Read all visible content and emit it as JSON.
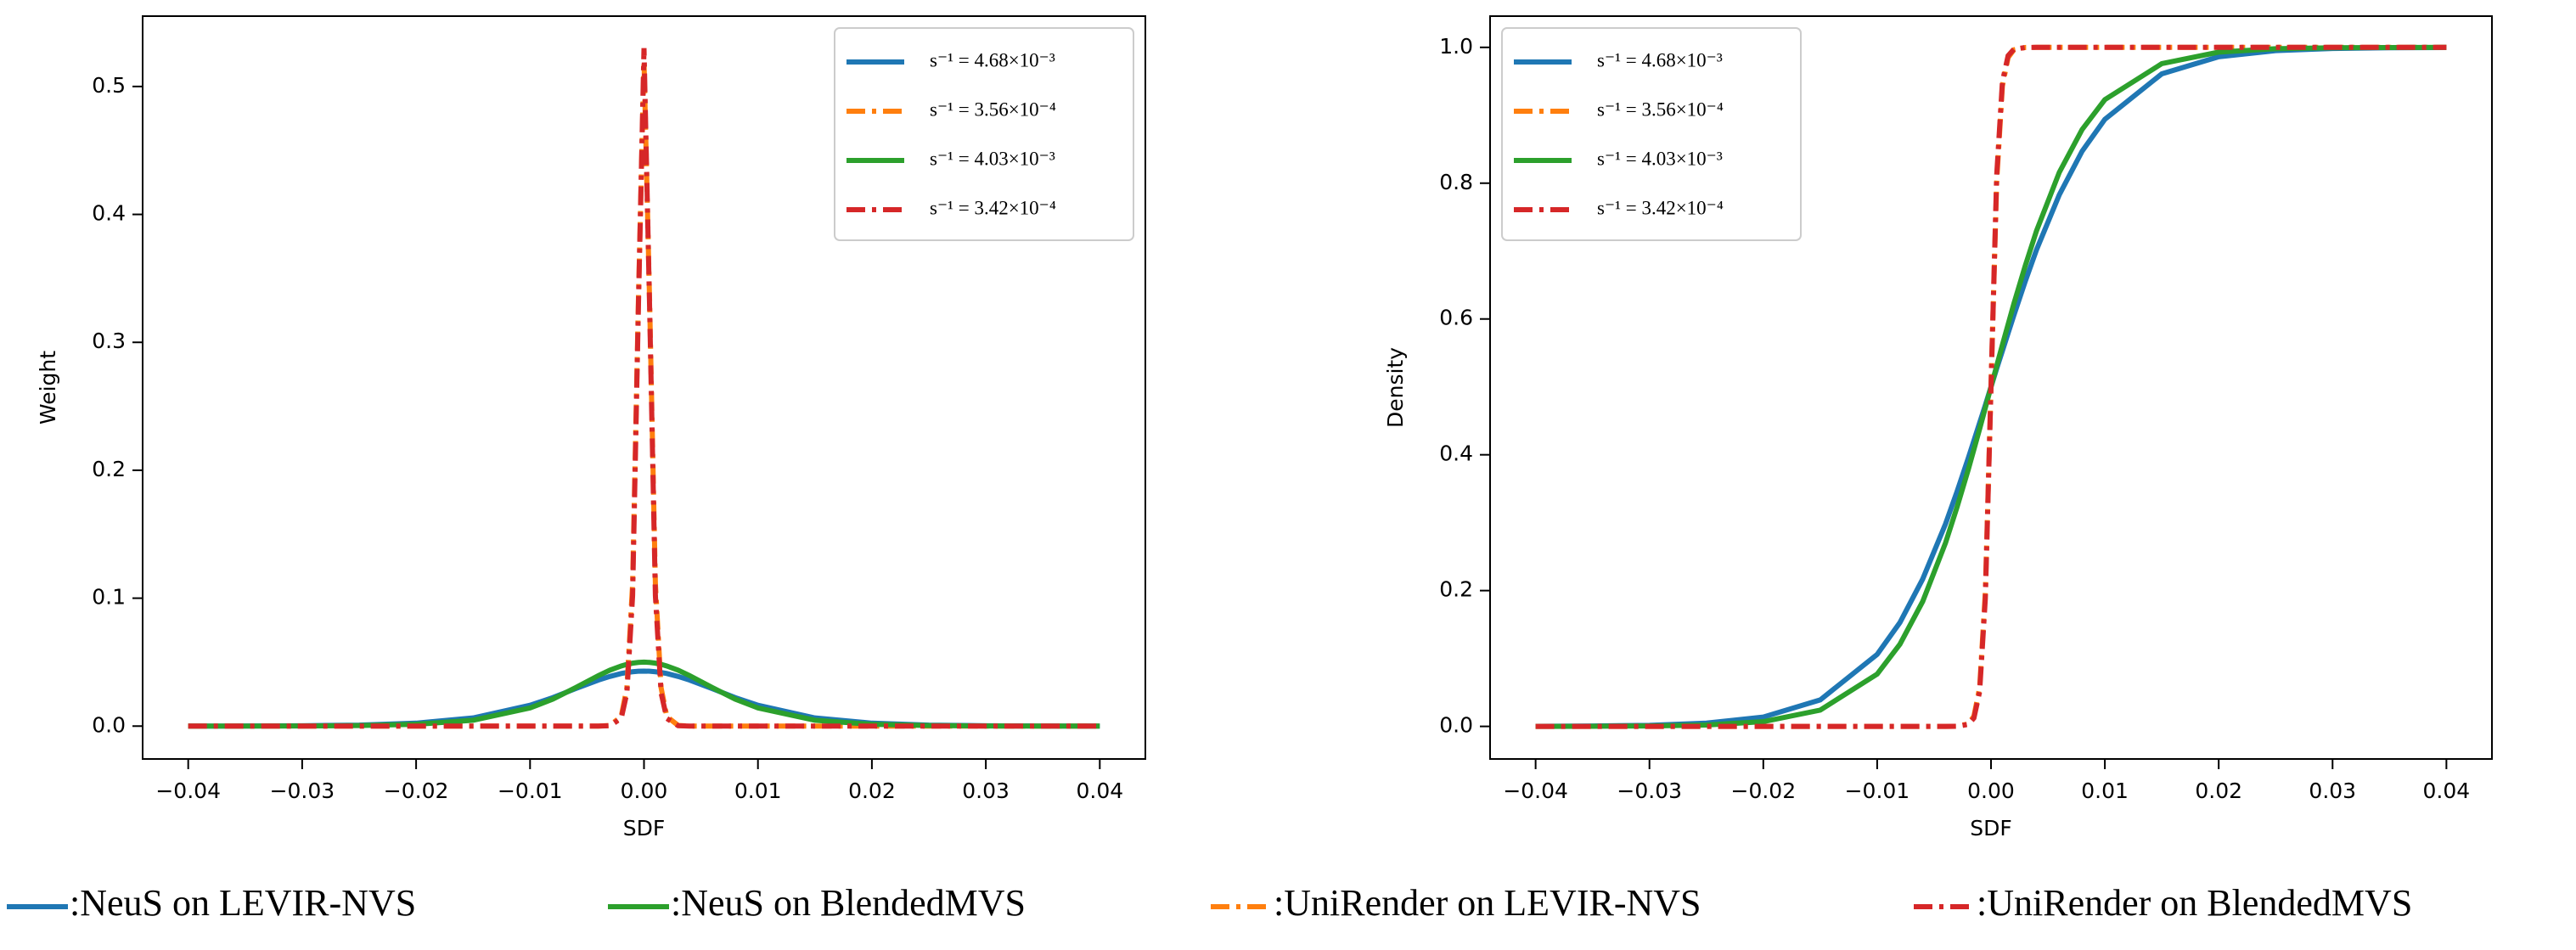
{
  "chart_data": [
    {
      "type": "line",
      "xlabel": "SDF",
      "ylabel": "Weight",
      "legend": "upper right",
      "x": [
        -0.04,
        -0.035,
        -0.03,
        -0.025,
        -0.02,
        -0.015,
        -0.01,
        -0.008,
        -0.006,
        -0.004,
        -0.003,
        -0.002,
        -0.0015,
        -0.001,
        -0.0005,
        0,
        0.0005,
        0.001,
        0.0015,
        0.002,
        0.003,
        0.004,
        0.006,
        0.008,
        0.01,
        0.015,
        0.02,
        0.025,
        0.03,
        0.035,
        0.04
      ],
      "xlim": [
        -0.044,
        0.044
      ],
      "ylim": [
        -0.0257,
        0.555
      ],
      "xticks": [
        {
          "value": -0.04,
          "label": "−0.04"
        },
        {
          "value": -0.03,
          "label": "−0.03"
        },
        {
          "value": -0.02,
          "label": "−0.02"
        },
        {
          "value": -0.01,
          "label": "−0.01"
        },
        {
          "value": 0,
          "label": "0.00"
        },
        0.01,
        0.02,
        0.03,
        0.04
      ],
      "yticks": [
        {
          "value": 0,
          "label": "0.0"
        },
        0.1,
        0.2,
        0.3,
        0.4,
        0.5
      ],
      "series": [
        {
          "name": "s⁻¹ = 4.68×10⁻³",
          "color": "#1f77b4",
          "dash": "solid",
          "values": [
            0,
            0.0001,
            0.0003,
            0.0008,
            0.0023,
            0.0064,
            0.0163,
            0.0223,
            0.0293,
            0.036,
            0.0388,
            0.0411,
            0.0419,
            0.0425,
            0.0429,
            0.043,
            0.0429,
            0.0425,
            0.0419,
            0.0411,
            0.0388,
            0.036,
            0.0293,
            0.0223,
            0.0163,
            0.0064,
            0.0023,
            0.0008,
            0.0003,
            0.0001,
            0
          ]
        },
        {
          "name": "s⁻¹ = 3.56×10⁻⁴",
          "color": "#ff7f0e",
          "dash": "dashdot",
          "values": [
            0,
            0,
            0,
            0,
            0,
            0,
            0,
            0,
            0,
            0,
            0.0005,
            0.0075,
            0.03,
            0.111,
            0.329,
            0.52,
            0.329,
            0.111,
            0.03,
            0.0075,
            0.0005,
            0,
            0,
            0,
            0,
            0,
            0,
            0,
            0,
            0,
            0
          ]
        },
        {
          "name": "s⁻¹ = 4.03×10⁻³",
          "color": "#2ca02c",
          "dash": "solid",
          "values": [
            0,
            0,
            0.0001,
            0.0004,
            0.0014,
            0.0046,
            0.0142,
            0.0211,
            0.0301,
            0.0395,
            0.0437,
            0.047,
            0.0483,
            0.0492,
            0.0498,
            0.05,
            0.0498,
            0.0492,
            0.0483,
            0.047,
            0.0437,
            0.0395,
            0.0301,
            0.0211,
            0.0142,
            0.0046,
            0.0014,
            0.0004,
            0.0001,
            0,
            0
          ]
        },
        {
          "name": "s⁻¹ = 3.42×10⁻⁴",
          "color": "#d62728",
          "dash": "dashdot",
          "values": [
            0,
            0,
            0,
            0,
            0,
            0,
            0,
            0,
            0,
            0,
            0.0003,
            0.006,
            0.026,
            0.102,
            0.324,
            0.53,
            0.324,
            0.102,
            0.026,
            0.006,
            0.0003,
            0,
            0,
            0,
            0,
            0,
            0,
            0,
            0,
            0,
            0
          ]
        }
      ]
    },
    {
      "type": "line",
      "xlabel": "SDF",
      "ylabel": "Density",
      "legend": "upper left",
      "x": [
        -0.04,
        -0.035,
        -0.03,
        -0.025,
        -0.02,
        -0.015,
        -0.01,
        -0.008,
        -0.006,
        -0.004,
        -0.003,
        -0.002,
        -0.0015,
        -0.001,
        -0.0005,
        0,
        0.0005,
        0.001,
        0.0015,
        0.002,
        0.003,
        0.004,
        0.006,
        0.008,
        0.01,
        0.015,
        0.02,
        0.025,
        0.03,
        0.035,
        0.04
      ],
      "xlim": [
        -0.044,
        0.044
      ],
      "ylim": [
        -0.048,
        1.046
      ],
      "xticks": [
        {
          "value": -0.04,
          "label": "−0.04"
        },
        {
          "value": -0.03,
          "label": "−0.03"
        },
        {
          "value": -0.02,
          "label": "−0.02"
        },
        {
          "value": -0.01,
          "label": "−0.01"
        },
        {
          "value": 0,
          "label": "0.00"
        },
        0.01,
        0.02,
        0.03,
        0.04
      ],
      "yticks": [
        {
          "value": 0,
          "label": "0.0"
        },
        0.2,
        0.4,
        0.6,
        0.8,
        {
          "value": 1,
          "label": "1.0"
        }
      ],
      "series": [
        {
          "name": "s⁻¹ = 4.68×10⁻³",
          "color": "#1f77b4",
          "dash": "solid",
          "values": [
            0.0002,
            0.0006,
            0.0016,
            0.0048,
            0.0138,
            0.039,
            0.106,
            0.153,
            0.217,
            0.298,
            0.345,
            0.395,
            0.421,
            0.447,
            0.473,
            0.5,
            0.527,
            0.553,
            0.579,
            0.605,
            0.655,
            0.702,
            0.783,
            0.847,
            0.894,
            0.961,
            0.9862,
            0.9952,
            0.9984,
            0.9994,
            0.9998
          ]
        },
        {
          "name": "s⁻¹ = 3.56×10⁻⁴",
          "color": "#ff7f0e",
          "dash": "dashdot",
          "values": [
            0,
            0,
            0,
            0,
            0,
            0,
            0,
            0,
            0,
            0,
            0.0002,
            0.0036,
            0.015,
            0.057,
            0.197,
            0.5,
            0.803,
            0.943,
            0.985,
            0.9964,
            0.9998,
            1,
            1,
            1,
            1,
            1,
            1,
            1,
            1,
            1,
            1
          ]
        },
        {
          "name": "s⁻¹ = 4.03×10⁻³",
          "color": "#2ca02c",
          "dash": "solid",
          "values": [
            0,
            0.0002,
            0.0006,
            0.002,
            0.007,
            0.024,
            0.077,
            0.121,
            0.184,
            0.27,
            0.322,
            0.378,
            0.408,
            0.438,
            0.469,
            0.5,
            0.531,
            0.562,
            0.592,
            0.622,
            0.678,
            0.73,
            0.816,
            0.879,
            0.923,
            0.976,
            0.993,
            0.998,
            0.9994,
            0.9998,
            1
          ]
        },
        {
          "name": "s⁻¹ = 3.42×10⁻⁴",
          "color": "#d62728",
          "dash": "dashdot",
          "values": [
            0,
            0,
            0,
            0,
            0,
            0,
            0,
            0,
            0,
            0,
            0.0002,
            0.0029,
            0.0123,
            0.051,
            0.188,
            0.5,
            0.812,
            0.949,
            0.9877,
            0.9971,
            0.9998,
            1,
            1,
            1,
            1,
            1,
            1,
            1,
            1,
            1,
            1
          ]
        }
      ]
    }
  ],
  "figure_legend": [
    {
      "label": ":NeuS on LEVIR-NVS",
      "color": "#1f77b4",
      "dash": "solid"
    },
    {
      "label": ":NeuS on BlendedMVS",
      "color": "#2ca02c",
      "dash": "solid"
    },
    {
      "label": ":UniRender on LEVIR-NVS",
      "color": "#ff7f0e",
      "dash": "dashdot"
    },
    {
      "label": ":UniRender on BlendedMVS",
      "color": "#d62728",
      "dash": "dashdot"
    }
  ]
}
